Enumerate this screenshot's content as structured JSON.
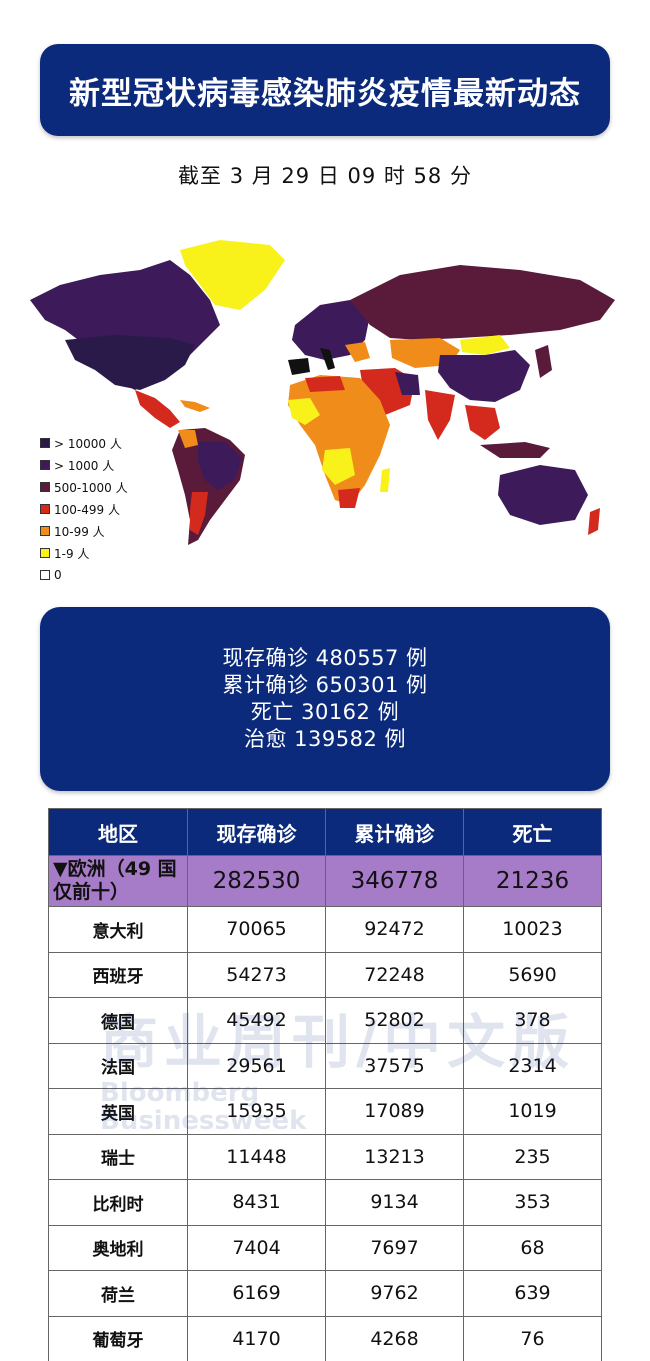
{
  "header": {
    "title": "新型冠状病毒感染肺炎疫情最新动态",
    "timestamp": "截至 3 月 29 日 09 时 58 分"
  },
  "legend": [
    {
      "label": "> 10000 人",
      "color": "#2a1a4a"
    },
    {
      "label": "> 1000 人",
      "color": "#3d1a5a"
    },
    {
      "label": "500-1000 人",
      "color": "#5a1a3a"
    },
    {
      "label": "100-499 人",
      "color": "#d42a1e"
    },
    {
      "label": "10-99 人",
      "color": "#f08c1a"
    },
    {
      "label": "1-9 人",
      "color": "#f8f21a"
    },
    {
      "label": "0",
      "color": "#ffffff"
    }
  ],
  "stats": {
    "active": "现存确诊 480557 例",
    "total": "累计确诊 650301 例",
    "deaths": "死亡 30162 例",
    "recovered": "治愈 139582 例"
  },
  "table": {
    "headers": [
      "地区",
      "现存确诊",
      "累计确诊",
      "死亡"
    ],
    "region": {
      "name": "▼欧洲（49 国仅前十）",
      "active": "282530",
      "total": "346778",
      "deaths": "21236"
    },
    "rows": [
      {
        "name": "意大利",
        "active": "70065",
        "total": "92472",
        "deaths": "10023"
      },
      {
        "name": "西班牙",
        "active": "54273",
        "total": "72248",
        "deaths": "5690"
      },
      {
        "name": "德国",
        "active": "45492",
        "total": "52802",
        "deaths": "378"
      },
      {
        "name": "法国",
        "active": "29561",
        "total": "37575",
        "deaths": "2314"
      },
      {
        "name": "英国",
        "active": "15935",
        "total": "17089",
        "deaths": "1019"
      },
      {
        "name": "瑞士",
        "active": "11448",
        "total": "13213",
        "deaths": "235"
      },
      {
        "name": "比利时",
        "active": "8431",
        "total": "9134",
        "deaths": "353"
      },
      {
        "name": "奥地利",
        "active": "7404",
        "total": "7697",
        "deaths": "68"
      },
      {
        "name": "荷兰",
        "active": "6169",
        "total": "9762",
        "deaths": "639"
      },
      {
        "name": "葡萄牙",
        "active": "4170",
        "total": "4268",
        "deaths": "76"
      }
    ]
  },
  "watermark": {
    "cn": "商业周刊/中文版",
    "en1": "Bloomberg",
    "en2": "Businessweek"
  },
  "colors": {
    "brand_blue": "#0b2a7c",
    "region_purple": "#a67bc8"
  }
}
